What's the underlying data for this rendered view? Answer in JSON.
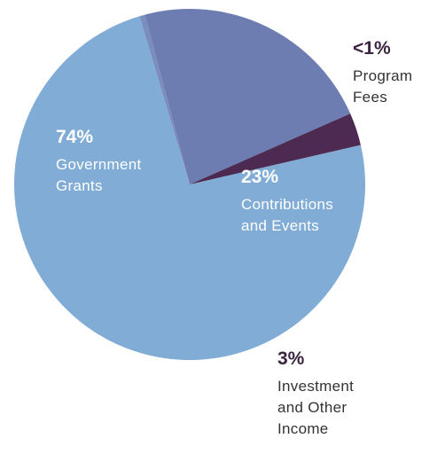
{
  "chart_data": {
    "type": "pie",
    "slices": [
      {
        "label": "Government Grants",
        "percent_label": "74%",
        "value": 74,
        "color": "#80acd6"
      },
      {
        "label": "Program Fees",
        "percent_label": "<1%",
        "value": 0.5,
        "color": "#7b8dbd"
      },
      {
        "label": "Contributions and Events",
        "percent_label": "23%",
        "value": 22.5,
        "color": "#6e7db1"
      },
      {
        "label": "Investment and Other Income",
        "percent_label": "3%",
        "value": 3,
        "color": "#4d2a51"
      }
    ],
    "labels": {
      "government": {
        "pct": "74%",
        "line1": "Government",
        "line2": "Grants"
      },
      "fees": {
        "pct": "<1%",
        "line1": "Program",
        "line2": "Fees"
      },
      "contributions": {
        "pct": "23%",
        "line1": "Contributions",
        "line2": "and Events"
      },
      "investment": {
        "pct": "3%",
        "line1": "Investment",
        "line2": "and Other",
        "line3": "Income"
      }
    }
  }
}
